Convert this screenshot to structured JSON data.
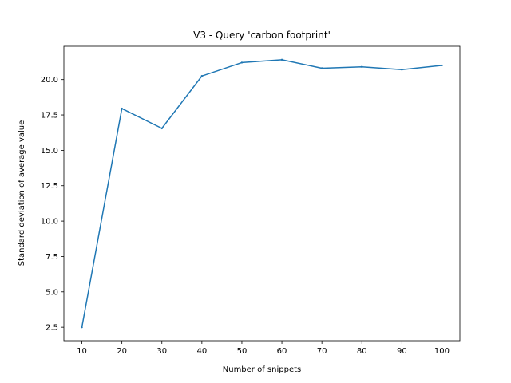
{
  "chart_data": {
    "type": "line",
    "title": "V3 - Query 'carbon footprint'",
    "xlabel": "Number of snippets",
    "ylabel": "Standard deviation of average value",
    "x": [
      10,
      20,
      30,
      40,
      50,
      60,
      70,
      80,
      90,
      100
    ],
    "series": [
      {
        "values": [
          2.5,
          17.95,
          16.55,
          20.25,
          21.2,
          21.4,
          20.8,
          20.9,
          20.7,
          21.0
        ],
        "color": "#1f77b4"
      }
    ],
    "xticks": [
      10,
      20,
      30,
      40,
      50,
      60,
      70,
      80,
      90,
      100
    ],
    "yticks": [
      "2.5",
      "5.0",
      "7.5",
      "10.0",
      "12.5",
      "15.0",
      "17.5",
      "20.0"
    ],
    "xlim": [
      5.5,
      104.5
    ],
    "ylim": [
      1.55,
      22.35
    ],
    "grid": false,
    "legend": "none"
  }
}
